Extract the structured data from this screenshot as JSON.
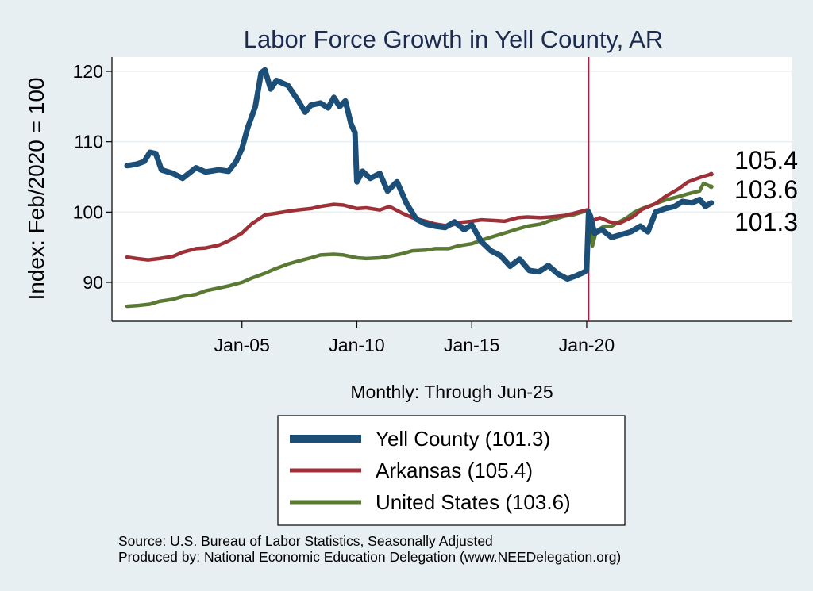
{
  "chart_data": {
    "type": "line",
    "title": "Labor Force Growth in Yell  County, AR",
    "ylabel": "Index: Feb/2020 = 100",
    "xlabel": "Monthly: Through Jun-25",
    "ylim": [
      86,
      122
    ],
    "yticks": [
      90,
      100,
      110,
      120
    ],
    "xlim": [
      "2000-01",
      "2028-07"
    ],
    "xticks": [
      {
        "date": "2005-01",
        "label": "Jan-05"
      },
      {
        "date": "2010-01",
        "label": "Jan-10"
      },
      {
        "date": "2015-01",
        "label": "Jan-15"
      },
      {
        "date": "2020-01",
        "label": "Jan-20"
      }
    ],
    "reference_line": {
      "date": "2020-02",
      "color": "#b5143f"
    },
    "grid": true,
    "legend_position": "bottom-center",
    "series": [
      {
        "name": "Yell  County (101.3)",
        "color": "#1b4f78",
        "end_value": 101.3,
        "end_label": "101.3",
        "points": [
          [
            "2000-01",
            106.6
          ],
          [
            "2000-06",
            106.8
          ],
          [
            "2000-10",
            107.2
          ],
          [
            "2001-01",
            108.5
          ],
          [
            "2001-04",
            108.3
          ],
          [
            "2001-07",
            106.0
          ],
          [
            "2002-01",
            105.5
          ],
          [
            "2002-06",
            104.8
          ],
          [
            "2003-01",
            106.3
          ],
          [
            "2003-06",
            105.7
          ],
          [
            "2004-01",
            106.0
          ],
          [
            "2004-06",
            105.8
          ],
          [
            "2004-10",
            107.2
          ],
          [
            "2005-01",
            109.0
          ],
          [
            "2005-04",
            112.0
          ],
          [
            "2005-08",
            115.0
          ],
          [
            "2005-11",
            119.8
          ],
          [
            "2006-01",
            120.2
          ],
          [
            "2006-04",
            117.5
          ],
          [
            "2006-07",
            118.7
          ],
          [
            "2007-01",
            118.0
          ],
          [
            "2007-06",
            116.0
          ],
          [
            "2007-10",
            114.2
          ],
          [
            "2008-01",
            115.2
          ],
          [
            "2008-06",
            115.5
          ],
          [
            "2008-10",
            114.8
          ],
          [
            "2009-01",
            116.3
          ],
          [
            "2009-04",
            115.0
          ],
          [
            "2009-07",
            115.8
          ],
          [
            "2009-10",
            112.5
          ],
          [
            "2009-12",
            111.3
          ],
          [
            "2010-01",
            104.3
          ],
          [
            "2010-04",
            105.8
          ],
          [
            "2010-08",
            104.8
          ],
          [
            "2011-01",
            105.5
          ],
          [
            "2011-05",
            103.0
          ],
          [
            "2011-10",
            104.3
          ],
          [
            "2012-03",
            101.2
          ],
          [
            "2012-08",
            99.0
          ],
          [
            "2013-01",
            98.3
          ],
          [
            "2013-06",
            98.0
          ],
          [
            "2013-11",
            97.8
          ],
          [
            "2014-04",
            98.6
          ],
          [
            "2014-09",
            97.5
          ],
          [
            "2015-01",
            98.2
          ],
          [
            "2015-06",
            95.8
          ],
          [
            "2015-11",
            94.5
          ],
          [
            "2016-04",
            93.8
          ],
          [
            "2016-09",
            92.3
          ],
          [
            "2017-02",
            93.3
          ],
          [
            "2017-07",
            91.7
          ],
          [
            "2017-12",
            91.5
          ],
          [
            "2018-05",
            92.4
          ],
          [
            "2018-10",
            91.2
          ],
          [
            "2019-03",
            90.5
          ],
          [
            "2019-08",
            91.0
          ],
          [
            "2019-12",
            91.5
          ],
          [
            "2020-01",
            91.8
          ],
          [
            "2020-02",
            100.0
          ],
          [
            "2020-03",
            99.4
          ],
          [
            "2020-05",
            97.0
          ],
          [
            "2020-09",
            97.5
          ],
          [
            "2021-02",
            96.4
          ],
          [
            "2021-07",
            96.8
          ],
          [
            "2021-12",
            97.2
          ],
          [
            "2022-05",
            98.0
          ],
          [
            "2022-09",
            97.2
          ],
          [
            "2023-01",
            100.0
          ],
          [
            "2023-06",
            100.5
          ],
          [
            "2023-11",
            100.8
          ],
          [
            "2024-03",
            101.5
          ],
          [
            "2024-08",
            101.3
          ],
          [
            "2024-12",
            101.8
          ],
          [
            "2025-03",
            100.8
          ],
          [
            "2025-06",
            101.3
          ]
        ]
      },
      {
        "name": "Arkansas (105.4)",
        "color": "#9e3038",
        "end_value": 105.4,
        "end_label": "105.4",
        "points": [
          [
            "2000-01",
            93.6
          ],
          [
            "2000-06",
            93.4
          ],
          [
            "2000-12",
            93.2
          ],
          [
            "2001-06",
            93.4
          ],
          [
            "2002-01",
            93.7
          ],
          [
            "2002-06",
            94.3
          ],
          [
            "2003-01",
            94.8
          ],
          [
            "2003-06",
            94.9
          ],
          [
            "2004-01",
            95.3
          ],
          [
            "2004-06",
            95.9
          ],
          [
            "2005-01",
            97.0
          ],
          [
            "2005-06",
            98.3
          ],
          [
            "2006-01",
            99.6
          ],
          [
            "2006-06",
            99.8
          ],
          [
            "2007-01",
            100.1
          ],
          [
            "2007-06",
            100.3
          ],
          [
            "2008-01",
            100.5
          ],
          [
            "2008-06",
            100.8
          ],
          [
            "2009-01",
            101.1
          ],
          [
            "2009-06",
            101.0
          ],
          [
            "2010-01",
            100.5
          ],
          [
            "2010-06",
            100.6
          ],
          [
            "2011-01",
            100.3
          ],
          [
            "2011-06",
            100.8
          ],
          [
            "2012-01",
            99.8
          ],
          [
            "2012-06",
            99.2
          ],
          [
            "2013-01",
            98.7
          ],
          [
            "2013-06",
            98.3
          ],
          [
            "2014-01",
            98.0
          ],
          [
            "2014-06",
            98.5
          ],
          [
            "2015-01",
            98.7
          ],
          [
            "2015-06",
            98.9
          ],
          [
            "2016-01",
            98.8
          ],
          [
            "2016-06",
            98.7
          ],
          [
            "2017-01",
            99.2
          ],
          [
            "2017-06",
            99.3
          ],
          [
            "2018-01",
            99.2
          ],
          [
            "2018-06",
            99.3
          ],
          [
            "2019-01",
            99.5
          ],
          [
            "2019-06",
            99.8
          ],
          [
            "2020-01",
            100.3
          ],
          [
            "2020-02",
            100.0
          ],
          [
            "2020-04",
            98.8
          ],
          [
            "2020-08",
            99.2
          ],
          [
            "2021-01",
            98.6
          ],
          [
            "2021-06",
            98.4
          ],
          [
            "2022-01",
            99.3
          ],
          [
            "2022-06",
            100.4
          ],
          [
            "2023-01",
            101.2
          ],
          [
            "2023-06",
            102.2
          ],
          [
            "2024-01",
            103.3
          ],
          [
            "2024-06",
            104.3
          ],
          [
            "2025-01",
            105.0
          ],
          [
            "2025-06",
            105.4
          ]
        ]
      },
      {
        "name": "United States (103.6)",
        "color": "#5a7a33",
        "end_value": 103.6,
        "end_label": "103.6",
        "points": [
          [
            "2000-01",
            86.6
          ],
          [
            "2000-06",
            86.7
          ],
          [
            "2001-01",
            86.9
          ],
          [
            "2001-06",
            87.3
          ],
          [
            "2002-01",
            87.6
          ],
          [
            "2002-06",
            88.0
          ],
          [
            "2003-01",
            88.3
          ],
          [
            "2003-06",
            88.8
          ],
          [
            "2004-01",
            89.2
          ],
          [
            "2004-06",
            89.5
          ],
          [
            "2005-01",
            90.0
          ],
          [
            "2005-06",
            90.6
          ],
          [
            "2006-01",
            91.3
          ],
          [
            "2006-06",
            91.9
          ],
          [
            "2007-01",
            92.6
          ],
          [
            "2007-06",
            93.0
          ],
          [
            "2008-01",
            93.5
          ],
          [
            "2008-06",
            93.9
          ],
          [
            "2009-01",
            94.0
          ],
          [
            "2009-06",
            93.9
          ],
          [
            "2010-01",
            93.5
          ],
          [
            "2010-06",
            93.4
          ],
          [
            "2011-01",
            93.5
          ],
          [
            "2011-06",
            93.7
          ],
          [
            "2012-01",
            94.1
          ],
          [
            "2012-06",
            94.5
          ],
          [
            "2013-01",
            94.6
          ],
          [
            "2013-06",
            94.8
          ],
          [
            "2014-01",
            94.8
          ],
          [
            "2014-06",
            95.2
          ],
          [
            "2015-01",
            95.5
          ],
          [
            "2015-06",
            96.0
          ],
          [
            "2016-01",
            96.6
          ],
          [
            "2016-06",
            97.0
          ],
          [
            "2017-01",
            97.6
          ],
          [
            "2017-06",
            98.0
          ],
          [
            "2018-01",
            98.3
          ],
          [
            "2018-06",
            98.8
          ],
          [
            "2019-01",
            99.4
          ],
          [
            "2019-06",
            99.6
          ],
          [
            "2020-01",
            100.2
          ],
          [
            "2020-02",
            100.0
          ],
          [
            "2020-04",
            95.2
          ],
          [
            "2020-06",
            97.3
          ],
          [
            "2020-10",
            98.0
          ],
          [
            "2021-02",
            98.0
          ],
          [
            "2021-06",
            98.6
          ],
          [
            "2021-10",
            99.2
          ],
          [
            "2022-02",
            100.0
          ],
          [
            "2022-06",
            100.5
          ],
          [
            "2023-01",
            101.2
          ],
          [
            "2023-06",
            101.7
          ],
          [
            "2024-01",
            102.2
          ],
          [
            "2024-06",
            102.6
          ],
          [
            "2024-12",
            103.0
          ],
          [
            "2025-02",
            104.1
          ],
          [
            "2025-06",
            103.6
          ]
        ]
      }
    ]
  },
  "source": {
    "line1": "Source: U.S. Bureau of Labor Statistics, Seasonally Adjusted",
    "line2": "Produced by: National Economic Education Delegation (www.NEEDelegation.org)"
  }
}
